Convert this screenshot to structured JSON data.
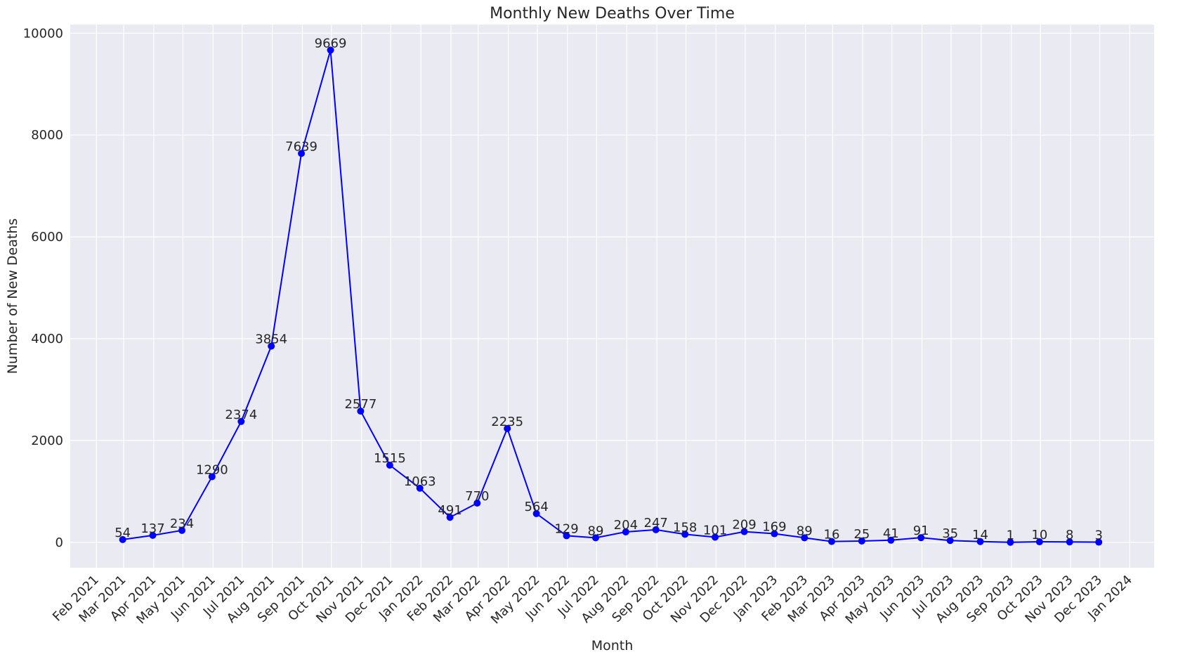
{
  "chart_data": {
    "type": "line",
    "title": "Monthly New Deaths Over Time",
    "xlabel": "Month",
    "ylabel": "Number of New Deaths",
    "x_ticks": [
      "Feb 2021",
      "Mar 2021",
      "Apr 2021",
      "May 2021",
      "Jun 2021",
      "Jul 2021",
      "Aug 2021",
      "Sep 2021",
      "Oct 2021",
      "Nov 2021",
      "Dec 2021",
      "Jan 2022",
      "Feb 2022",
      "Mar 2022",
      "Apr 2022",
      "May 2022",
      "Jun 2022",
      "Jul 2022",
      "Aug 2022",
      "Sep 2022",
      "Oct 2022",
      "Nov 2022",
      "Dec 2022",
      "Jan 2023",
      "Feb 2023",
      "Mar 2023",
      "Apr 2023",
      "May 2023",
      "Jun 2023",
      "Jul 2023",
      "Aug 2023",
      "Sep 2023",
      "Oct 2023",
      "Nov 2023",
      "Dec 2023",
      "Jan 2024"
    ],
    "y_ticks": [
      "0",
      "2000",
      "4000",
      "6000",
      "8000",
      "10000"
    ],
    "ylim": [
      -500,
      10170
    ],
    "x_range": [
      "2021-01-05",
      "2024-01-26"
    ],
    "grid": true,
    "series": [
      {
        "color": "#0000ff",
        "points": [
          {
            "date": "2021-02-28",
            "y": 54
          },
          {
            "date": "2021-03-31",
            "y": 137
          },
          {
            "date": "2021-04-30",
            "y": 234
          },
          {
            "date": "2021-05-31",
            "y": 1290
          },
          {
            "date": "2021-06-30",
            "y": 2374
          },
          {
            "date": "2021-07-31",
            "y": 3854
          },
          {
            "date": "2021-08-31",
            "y": 7639
          },
          {
            "date": "2021-09-30",
            "y": 9669
          },
          {
            "date": "2021-10-31",
            "y": 2577
          },
          {
            "date": "2021-11-30",
            "y": 1515
          },
          {
            "date": "2021-12-31",
            "y": 1063
          },
          {
            "date": "2022-01-31",
            "y": 491
          },
          {
            "date": "2022-02-28",
            "y": 770
          },
          {
            "date": "2022-03-31",
            "y": 2235
          },
          {
            "date": "2022-04-30",
            "y": 564
          },
          {
            "date": "2022-05-31",
            "y": 129
          },
          {
            "date": "2022-06-30",
            "y": 89
          },
          {
            "date": "2022-07-31",
            "y": 204
          },
          {
            "date": "2022-08-31",
            "y": 247
          },
          {
            "date": "2022-09-30",
            "y": 158
          },
          {
            "date": "2022-10-31",
            "y": 101
          },
          {
            "date": "2022-11-30",
            "y": 209
          },
          {
            "date": "2022-12-31",
            "y": 169
          },
          {
            "date": "2023-01-31",
            "y": 89
          },
          {
            "date": "2023-02-28",
            "y": 16
          },
          {
            "date": "2023-03-31",
            "y": 25
          },
          {
            "date": "2023-04-30",
            "y": 41
          },
          {
            "date": "2023-05-31",
            "y": 91
          },
          {
            "date": "2023-06-30",
            "y": 35
          },
          {
            "date": "2023-07-31",
            "y": 14
          },
          {
            "date": "2023-08-31",
            "y": 1
          },
          {
            "date": "2023-09-30",
            "y": 10
          },
          {
            "date": "2023-10-31",
            "y": 8
          },
          {
            "date": "2023-11-30",
            "y": 3
          }
        ]
      }
    ],
    "colors": {
      "plot_background": "#eaeaf2",
      "grid": "#ffffff",
      "line": "#0000ff",
      "text": "#262626"
    }
  }
}
